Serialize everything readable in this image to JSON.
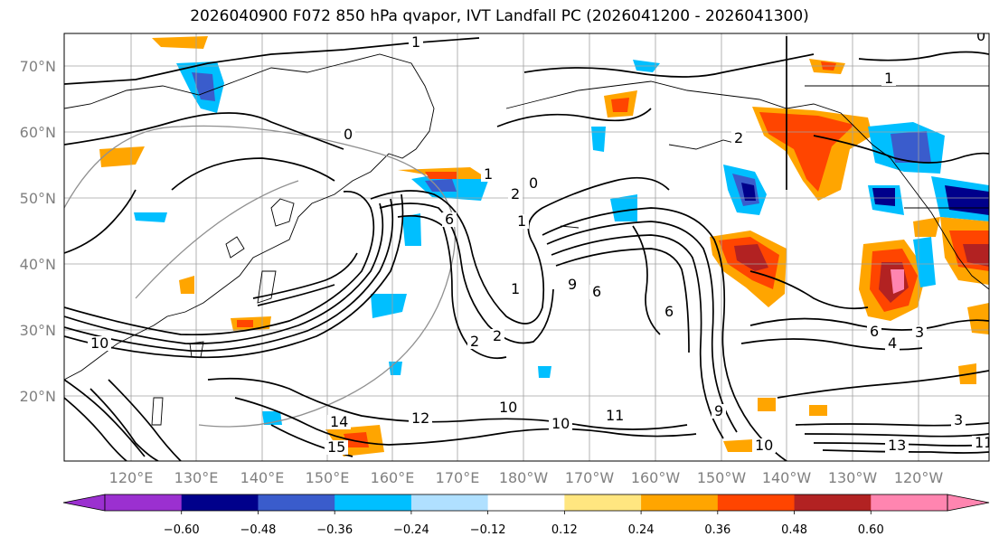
{
  "title": "2026040900 F072 850 hPa qvapor, IVT Landfall PC (2026041200 - 2026041300)",
  "map": {
    "lat_labels": [
      "70°N",
      "60°N",
      "50°N",
      "40°N",
      "30°N",
      "20°N"
    ],
    "lon_labels": [
      "120°E",
      "130°E",
      "140°E",
      "150°E",
      "160°E",
      "170°E",
      "180°W",
      "170°W",
      "160°W",
      "150°W",
      "140°W",
      "130°W",
      "120°W"
    ],
    "contour_labels": [
      {
        "text": "1"
      },
      {
        "text": "0"
      },
      {
        "text": "1"
      },
      {
        "text": "0"
      },
      {
        "text": "2"
      },
      {
        "text": "6"
      },
      {
        "text": "1"
      },
      {
        "text": "1"
      },
      {
        "text": "9"
      },
      {
        "text": "6"
      },
      {
        "text": "6"
      },
      {
        "text": "2"
      },
      {
        "text": "2"
      },
      {
        "text": "10"
      },
      {
        "text": "10"
      },
      {
        "text": "11"
      },
      {
        "text": "14"
      },
      {
        "text": "12"
      },
      {
        "text": "15"
      },
      {
        "text": "9"
      },
      {
        "text": "10"
      },
      {
        "text": "13"
      },
      {
        "text": "3"
      },
      {
        "text": "4"
      },
      {
        "text": "6"
      },
      {
        "text": "3"
      },
      {
        "text": "11"
      },
      {
        "text": "10"
      },
      {
        "text": "2"
      },
      {
        "text": "1"
      },
      {
        "text": "0"
      }
    ]
  },
  "colorbar": {
    "tick_labels": [
      "−0.60",
      "−0.48",
      "−0.36",
      "−0.24",
      "−0.12",
      "0.12",
      "0.24",
      "0.36",
      "0.48",
      "0.60"
    ],
    "colors": [
      "#9b30d0",
      "#00008b",
      "#3a5ccc",
      "#00bfff",
      "#b0e0ff",
      "#ffffff",
      "#ffe680",
      "#ffa500",
      "#ff4500",
      "#b22222",
      "#ff85b0",
      "#ff85b0"
    ]
  },
  "colors": {
    "purple": "#9b30d0",
    "navy": "#00008b",
    "blue": "#3a5ccc",
    "cyan": "#00bfff",
    "lightblue": "#b0e0ff",
    "yellow": "#ffe680",
    "orange": "#ffa500",
    "red": "#ff4500",
    "darkred": "#b22222",
    "pink": "#ff85b0"
  }
}
